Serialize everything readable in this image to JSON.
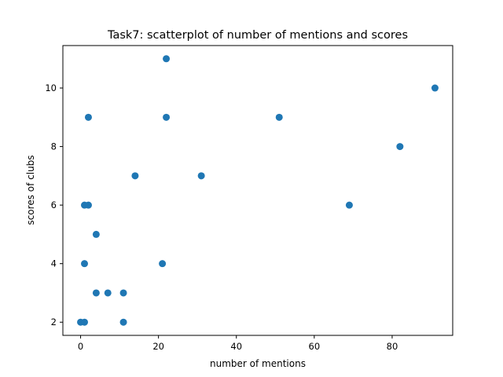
{
  "chart_data": {
    "type": "scatter",
    "title": "Task7: scatterplot of number of mentions and scores",
    "xlabel": "number of mentions",
    "ylabel": "scores of clubs",
    "xlim": [
      -4.55,
      95.55
    ],
    "ylim": [
      1.55,
      11.45
    ],
    "xticks": [
      0,
      20,
      40,
      60,
      80
    ],
    "yticks": [
      2,
      4,
      6,
      8,
      10
    ],
    "grid": false,
    "marker_color": "#1f77b4",
    "points": [
      {
        "x": 22,
        "y": 11
      },
      {
        "x": 91,
        "y": 10
      },
      {
        "x": 2,
        "y": 9
      },
      {
        "x": 22,
        "y": 9
      },
      {
        "x": 51,
        "y": 9
      },
      {
        "x": 82,
        "y": 8
      },
      {
        "x": 14,
        "y": 7
      },
      {
        "x": 31,
        "y": 7
      },
      {
        "x": 1,
        "y": 6
      },
      {
        "x": 2,
        "y": 6
      },
      {
        "x": 69,
        "y": 6
      },
      {
        "x": 4,
        "y": 5
      },
      {
        "x": 1,
        "y": 4
      },
      {
        "x": 21,
        "y": 4
      },
      {
        "x": 4,
        "y": 3
      },
      {
        "x": 7,
        "y": 3
      },
      {
        "x": 11,
        "y": 3
      },
      {
        "x": 0,
        "y": 2
      },
      {
        "x": 1,
        "y": 2
      },
      {
        "x": 11,
        "y": 2
      }
    ]
  }
}
